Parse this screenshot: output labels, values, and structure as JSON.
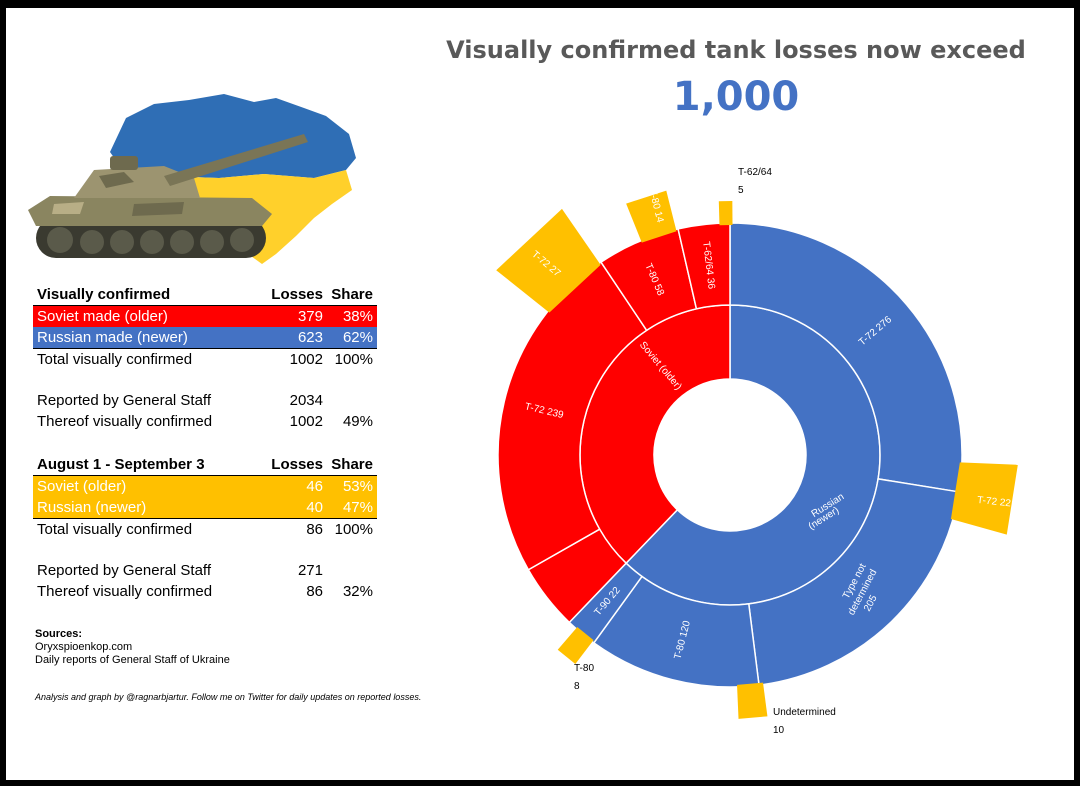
{
  "title": "Visually confirmed tank losses now exceed",
  "headline_number": "1,000",
  "colors": {
    "soviet": "#FF0000",
    "russian": "#4472C4",
    "recent": "#FFC000",
    "title": "#595959"
  },
  "illustration": {
    "icon": "tank-over-ukraine-map-icon"
  },
  "table1": {
    "header": {
      "label": "Visually confirmed",
      "c2": "Losses",
      "c3": "Share"
    },
    "rows": [
      {
        "label": "Soviet made (older)",
        "c2": "379",
        "c3": "38%"
      },
      {
        "label": "Russian made (newer)",
        "c2": "623",
        "c3": "62%"
      },
      {
        "label": "Total visually confirmed",
        "c2": "1002",
        "c3": "100%"
      }
    ]
  },
  "table2": {
    "rows": [
      {
        "label": "Reported by General Staff",
        "c2": "2034",
        "c3": ""
      },
      {
        "label": "Thereof visually confirmed",
        "c2": "1002",
        "c3": "49%"
      }
    ]
  },
  "table3": {
    "header": {
      "label": "August 1 - September 3",
      "c2": "Losses",
      "c3": "Share"
    },
    "rows": [
      {
        "label": "Soviet (older)",
        "c2": "46",
        "c3": "53%"
      },
      {
        "label": "Russian (newer)",
        "c2": "40",
        "c3": "47%"
      },
      {
        "label": "Total visually confirmed",
        "c2": "86",
        "c3": "100%"
      }
    ]
  },
  "table4": {
    "rows": [
      {
        "label": "Reported by General Staff",
        "c2": "271",
        "c3": ""
      },
      {
        "label": "Thereof visually confirmed",
        "c2": "86",
        "c3": "32%"
      }
    ]
  },
  "sources": {
    "heading": "Sources:",
    "lines": [
      "Oryxspioenkop.com",
      "Daily reports of General Staff of Ukraine"
    ]
  },
  "footnote": "Analysis and graph by @ragnarbjartur. Follow me on Twitter for daily updates on reported losses.",
  "chart_data": {
    "type": "sunburst",
    "total_confirmed": 1002,
    "inner": [
      {
        "label": "Soviet (older)",
        "value": 379,
        "group": "soviet"
      },
      {
        "label": "Russian (newer)",
        "value": 623,
        "group": "russian"
      }
    ],
    "outer": [
      {
        "model": "T-72",
        "value": 276,
        "group": "russian",
        "label": "T-72 276"
      },
      {
        "model": "Type not determined",
        "value": 205,
        "group": "russian",
        "label": "Type not determined 205"
      },
      {
        "model": "T-80",
        "value": 120,
        "group": "russian",
        "label": "T-80 120"
      },
      {
        "model": "T-90",
        "value": 22,
        "group": "russian",
        "label": "T-90 22"
      },
      {
        "model": "T-72",
        "value": 239,
        "group": "soviet",
        "label": "T-72 239"
      },
      {
        "model": "T-80",
        "value": 58,
        "group": "soviet",
        "label": "T-80 58"
      },
      {
        "model": "T-62/64",
        "value": 36,
        "group": "soviet",
        "label": "T-62/64 36"
      },
      {
        "model": "Undetermined",
        "value": 46,
        "group": "soviet",
        "label": ""
      }
    ],
    "recent": {
      "period": "August 1 - September 3",
      "items": [
        {
          "model": "T-62/64",
          "value": 5,
          "label_line1": "T-62/64",
          "label_line2": "5"
        },
        {
          "model": "T-80",
          "value": 14,
          "label": "T-80 14"
        },
        {
          "model": "T-72",
          "value": 27,
          "label": "T-72 27"
        },
        {
          "model": "T-80",
          "value": 8,
          "label_line1": "T-80",
          "label_line2": "8"
        },
        {
          "model": "Undetermined",
          "value": 10,
          "label_line1": "Undetermined",
          "label_line2": "10"
        },
        {
          "model": "T-72",
          "value": 22,
          "label": "T-72 22"
        }
      ]
    }
  }
}
